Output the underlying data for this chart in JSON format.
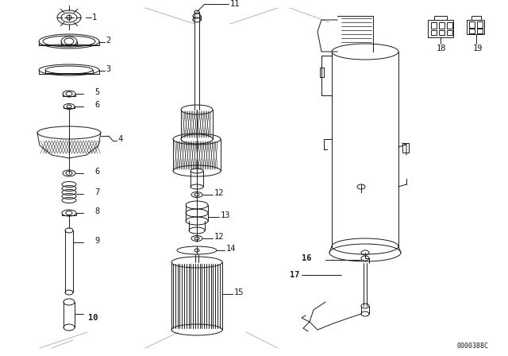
{
  "bg_color": "#ffffff",
  "line_color": "#1a1a1a",
  "diagram_id": "0000388C",
  "gray_line": "#aaaaaa"
}
